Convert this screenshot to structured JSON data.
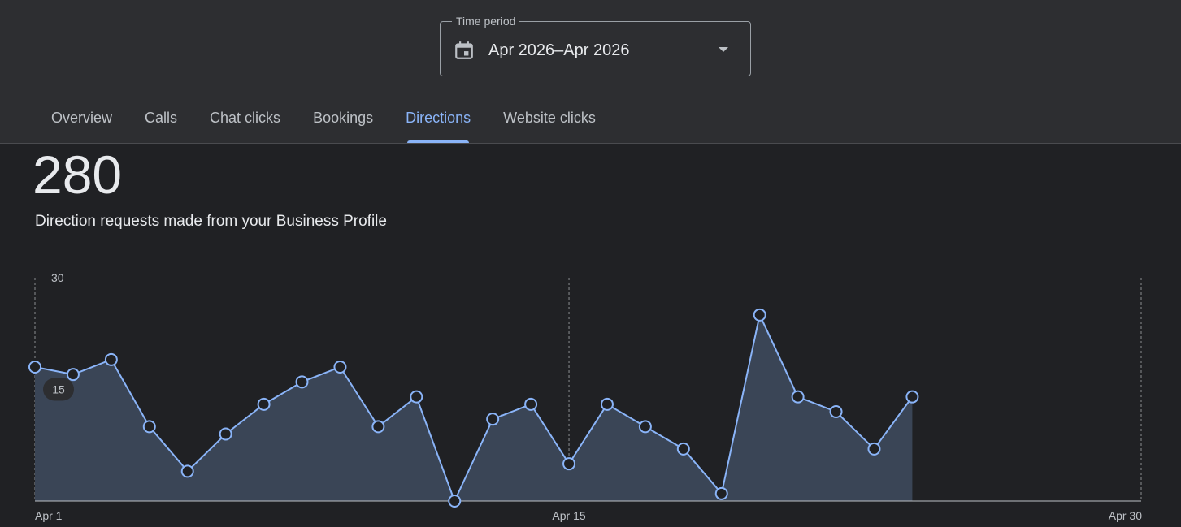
{
  "time_period": {
    "legend": "Time period",
    "value": "Apr 2026–Apr 2026",
    "icon": "calendar-icon"
  },
  "tabs": [
    {
      "label": "Overview",
      "active": false
    },
    {
      "label": "Calls",
      "active": false
    },
    {
      "label": "Chat clicks",
      "active": false
    },
    {
      "label": "Bookings",
      "active": false
    },
    {
      "label": "Directions",
      "active": true
    },
    {
      "label": "Website clicks",
      "active": false
    }
  ],
  "summary": {
    "total": "280",
    "description": "Direction requests made from your Business Profile"
  },
  "colors": {
    "accent": "#8ab4f8",
    "area_fill": "#3a4556",
    "background": "#202124",
    "header_background": "#2d2e31"
  },
  "chart_data": {
    "type": "area",
    "x": [
      1,
      2,
      3,
      4,
      5,
      6,
      7,
      8,
      9,
      10,
      11,
      12,
      13,
      14,
      15,
      16,
      17,
      18,
      19,
      20,
      21,
      22,
      23,
      24
    ],
    "values": [
      18,
      17,
      19,
      10,
      4,
      9,
      13,
      16,
      18,
      10,
      14,
      0,
      11,
      13,
      5,
      13,
      10,
      7,
      1,
      25,
      14,
      12,
      7,
      14
    ],
    "xlim": [
      1,
      30
    ],
    "ylim": [
      0,
      30
    ],
    "y_ticks": [
      "30",
      "15"
    ],
    "x_ticks": [
      {
        "day": 1,
        "label": "Apr 1"
      },
      {
        "day": 15,
        "label": "Apr 15"
      },
      {
        "day": 30,
        "label": "Apr 30"
      }
    ],
    "grid": "vertical dashed at x ticks"
  }
}
